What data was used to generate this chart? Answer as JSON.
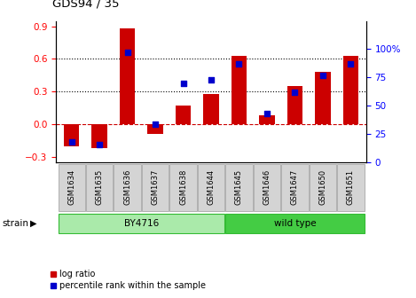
{
  "title": "GDS94 / 35",
  "samples": [
    "GSM1634",
    "GSM1635",
    "GSM1636",
    "GSM1637",
    "GSM1638",
    "GSM1644",
    "GSM1645",
    "GSM1646",
    "GSM1647",
    "GSM1650",
    "GSM1651"
  ],
  "log_ratio": [
    -0.2,
    -0.22,
    0.88,
    -0.09,
    0.17,
    0.28,
    0.63,
    0.08,
    0.35,
    0.48,
    0.63
  ],
  "percentile": [
    18,
    16,
    97,
    34,
    70,
    73,
    87,
    43,
    62,
    77,
    87
  ],
  "by4716_indices": [
    0,
    1,
    2,
    3,
    4,
    5
  ],
  "wild_type_indices": [
    6,
    7,
    8,
    9,
    10
  ],
  "ylim_left": [
    -0.35,
    0.95
  ],
  "ylim_right": [
    0,
    125
  ],
  "yticks_left": [
    -0.3,
    0.0,
    0.3,
    0.6,
    0.9
  ],
  "yticks_right": [
    0,
    25,
    50,
    75,
    100
  ],
  "bar_color": "#cc0000",
  "dot_color": "#0000cc",
  "by4716_color": "#aaeaaa",
  "wild_type_color": "#44cc44",
  "zero_line_color": "#cc0000",
  "label_log_ratio": "log ratio",
  "label_percentile": "percentile rank within the sample",
  "strain_label": "strain",
  "by4716_label": "BY4716",
  "wild_type_label": "wild type"
}
